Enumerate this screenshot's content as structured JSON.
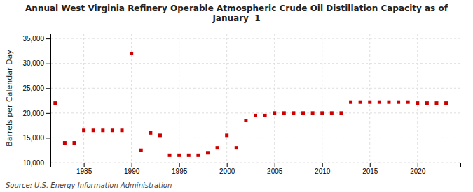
{
  "chart_data": {
    "type": "scatter",
    "title": "Annual West Virginia Refinery Operable Atmospheric Crude Oil Distillation Capacity as of\nJanuary  1",
    "ylabel": "Barrels per Calendar Day",
    "source": "Source: U.S. Energy Information Administration",
    "color": "#cc0000",
    "marker": "square",
    "grid": true,
    "x": [
      1982,
      1983,
      1984,
      1985,
      1986,
      1987,
      1988,
      1989,
      1990,
      1991,
      1992,
      1993,
      1994,
      1995,
      1996,
      1997,
      1998,
      1999,
      2000,
      2001,
      2002,
      2003,
      2004,
      2005,
      2006,
      2007,
      2008,
      2009,
      2010,
      2011,
      2012,
      2013,
      2014,
      2015,
      2016,
      2017,
      2018,
      2019,
      2020,
      2021,
      2022,
      2023
    ],
    "values": [
      22000,
      14000,
      14000,
      16500,
      16500,
      16500,
      16500,
      16500,
      32000,
      12500,
      16000,
      15500,
      11500,
      11500,
      11500,
      11500,
      12000,
      13000,
      15500,
      13000,
      18500,
      19500,
      19500,
      20000,
      20000,
      20000,
      20000,
      20000,
      20000,
      20000,
      20000,
      22200,
      22200,
      22200,
      22200,
      22200,
      22200,
      22200,
      22000,
      22000,
      22000,
      22000
    ],
    "xlim": [
      1981.5,
      2024.5
    ],
    "xticks": [
      1985,
      1990,
      1995,
      2000,
      2005,
      2010,
      2015,
      2020
    ],
    "ylim": [
      10000,
      36000
    ],
    "yticks": [
      {
        "value": 10000,
        "label": "10,000"
      },
      {
        "value": 15000,
        "label": "15,000"
      },
      {
        "value": 20000,
        "label": "20,000"
      },
      {
        "value": 25000,
        "label": "25,000"
      },
      {
        "value": 30000,
        "label": "30,000"
      },
      {
        "value": 35000,
        "label": "35,000"
      }
    ]
  }
}
